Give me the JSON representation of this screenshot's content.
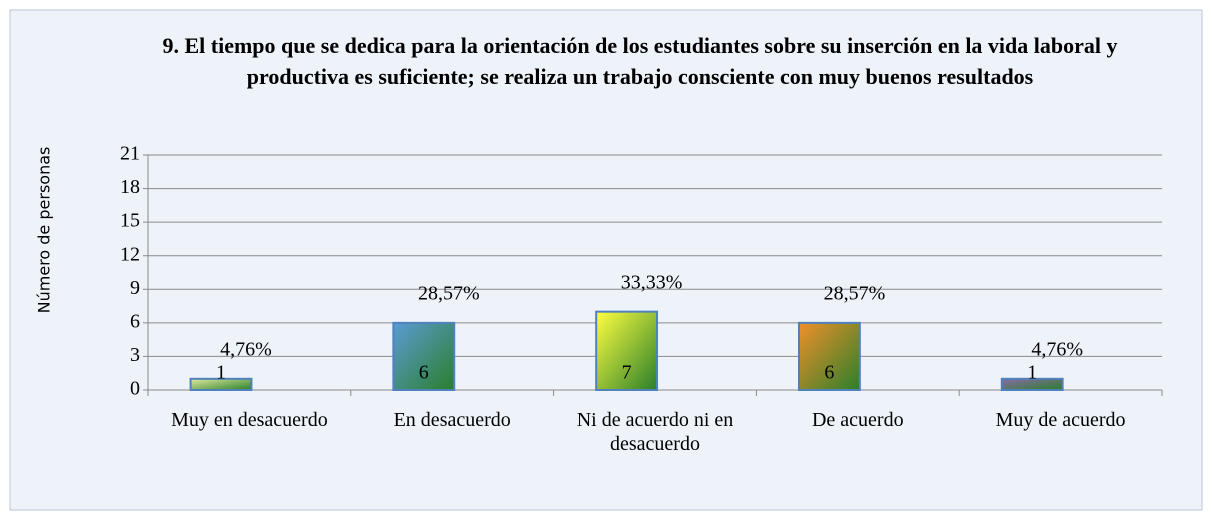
{
  "chart_data": {
    "type": "bar",
    "title": "9. El tiempo que se dedica para la orientación de los estudiantes sobre su inserción en la vida laboral y productiva es suficiente; se realiza un trabajo consciente con muy buenos resultados",
    "y_label": "Número de personas",
    "categories": [
      "Muy en desacuerdo",
      "En desacuerdo",
      "Ni de acuerdo ni en desacuerdo",
      "De acuerdo",
      "Muy de acuerdo"
    ],
    "values": [
      1,
      6,
      7,
      6,
      1
    ],
    "percent_labels": [
      "4,76%",
      "28,57%",
      "33,33%",
      "28,57%",
      "4,76%"
    ],
    "colors": [
      "#dfe9a0",
      "#5b9bd5",
      "#ffff40",
      "#f0902a",
      "#8a6aa8"
    ],
    "gradient_end": "#2a7f2a",
    "ylim": [
      0,
      21
    ],
    "yticks": [
      0,
      3,
      6,
      9,
      12,
      15,
      18,
      21
    ],
    "grid": true
  }
}
